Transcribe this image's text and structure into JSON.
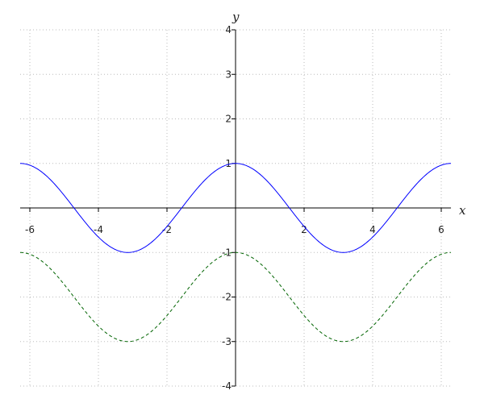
{
  "chart_data": {
    "type": "line",
    "title": "",
    "xlabel": "x",
    "ylabel": "y",
    "xlim": [
      -6.2832,
      6.2832
    ],
    "ylim": [
      -4,
      4
    ],
    "grid": true,
    "xticks": [
      -6,
      -4,
      -2,
      2,
      4,
      6
    ],
    "yticks": [
      -4,
      -3,
      -2,
      -1,
      1,
      2,
      3,
      4
    ],
    "xtick_labels": [
      "-6",
      "-4",
      "-2",
      "2",
      "4",
      "6"
    ],
    "ytick_labels": [
      "-4",
      "-3",
      "-2",
      "-1",
      "1",
      "2",
      "3",
      "4"
    ],
    "series": [
      {
        "expression": "cos(x)",
        "color": "#0000ff",
        "style": "solid",
        "x_range": [
          -6.2832,
          6.2832
        ],
        "offset": 0
      },
      {
        "expression": "cos(x) - 2",
        "color": "#006400",
        "style": "dashed",
        "x_range": [
          -6.2832,
          6.2832
        ],
        "offset": -2
      }
    ]
  }
}
